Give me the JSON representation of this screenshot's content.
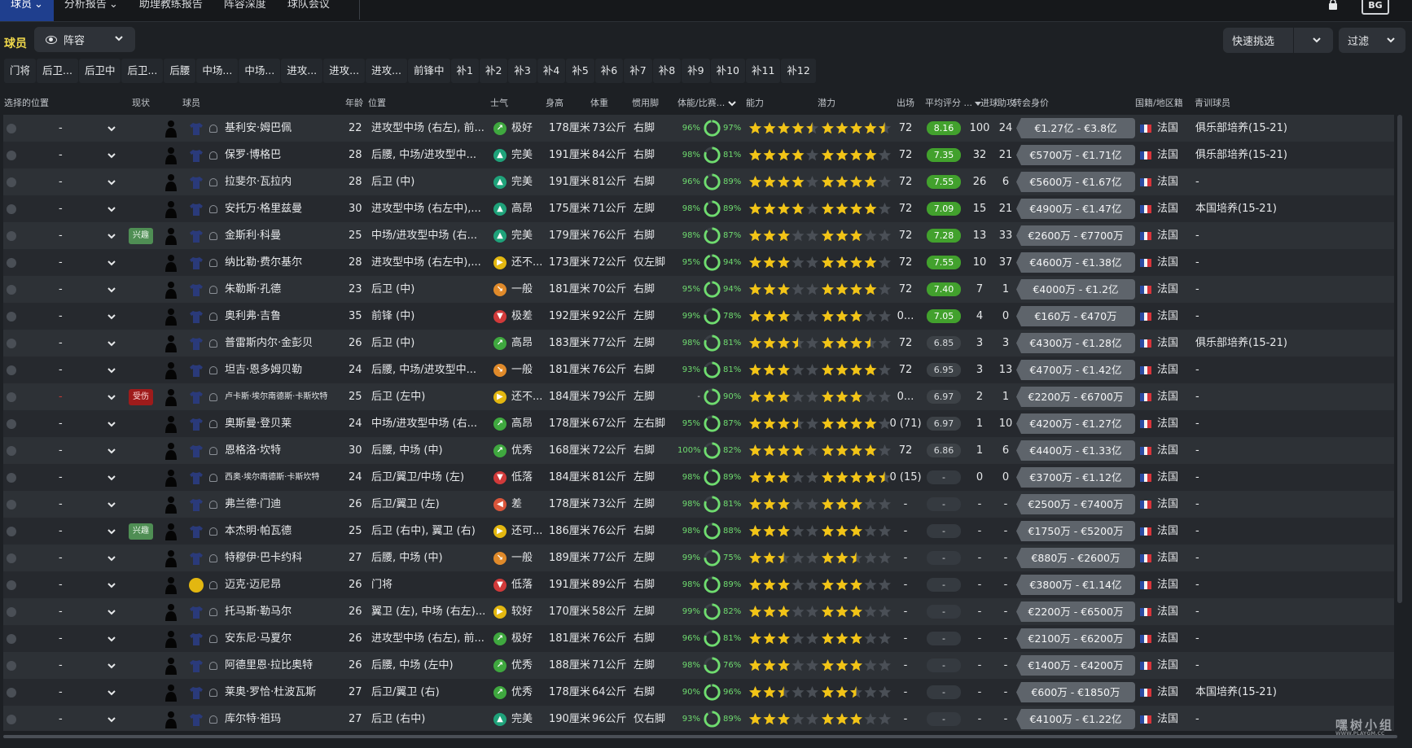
{
  "nav": {
    "items": [
      {
        "label": "球员",
        "active": true
      },
      {
        "label": "分析报告"
      },
      {
        "label": "助理教练报告"
      },
      {
        "label": "阵容深度"
      },
      {
        "label": "球队会议"
      }
    ],
    "logo_text": "BG"
  },
  "header": {
    "section_title": "球员",
    "view_label": "阵容",
    "quick_pick_label": "快速挑选",
    "filter_label": "过滤"
  },
  "tabs": [
    "门将",
    "后卫...",
    "后卫中",
    "后卫...",
    "后腰",
    "中场...",
    "中场...",
    "进攻...",
    "进攻...",
    "进攻...",
    "前锋中",
    "补1",
    "补2",
    "补3",
    "补4",
    "补5",
    "补6",
    "补7",
    "补8",
    "补9",
    "补10",
    "补11",
    "补12"
  ],
  "columns": {
    "select_pos": "选择的位置",
    "status": "现状",
    "player": "球员",
    "age": "年龄",
    "position": "位置",
    "morale": "士气",
    "height": "身高",
    "weight": "体重",
    "foot": "惯用脚",
    "condition": "体能/比赛...",
    "ability": "能力",
    "potential": "潜力",
    "apps": "出场",
    "avg_rating": "平均评分 ...",
    "goals": "进球",
    "assists": "助攻",
    "value": "转会身价",
    "nation": "国籍/地区籍",
    "youth": "青训球员"
  },
  "players": [
    {
      "name": "基利安·姆巴佩",
      "age": "22",
      "pos": "进攻型中场 (右左), 前...",
      "morale": "极好",
      "mc": "#3fa83f",
      "mi": "↗",
      "height": "178厘米",
      "weight": "73公斤",
      "foot": "右脚",
      "cond": "96%",
      "sharp": "97%",
      "ab": 4.5,
      "pot": 4.5,
      "apps": "72",
      "rating": "8.16",
      "rt": "green",
      "goals": "100",
      "assists": "24",
      "value": "€1.27亿 - €3.8亿",
      "nation": "法国",
      "youth": "俱乐部培养(15-21)"
    },
    {
      "name": "保罗·博格巴",
      "age": "28",
      "pos": "后腰, 中场/进攻型中...",
      "morale": "完美",
      "mc": "#1fa27a",
      "mi": "▲",
      "height": "191厘米",
      "weight": "84公斤",
      "foot": "右脚",
      "cond": "98%",
      "sharp": "81%",
      "ab": 4,
      "pot": 4,
      "apps": "72",
      "rating": "7.35",
      "rt": "green",
      "goals": "32",
      "assists": "21",
      "value": "€5700万 - €1.71亿",
      "nation": "法国",
      "youth": "俱乐部培养(15-21)"
    },
    {
      "name": "拉斐尔·瓦拉内",
      "age": "28",
      "pos": "后卫 (中)",
      "morale": "完美",
      "mc": "#1fa27a",
      "mi": "▲",
      "height": "191厘米",
      "weight": "81公斤",
      "foot": "右脚",
      "cond": "96%",
      "sharp": "89%",
      "ab": 4,
      "pot": 4,
      "apps": "72",
      "rating": "7.55",
      "rt": "green",
      "goals": "26",
      "assists": "6",
      "value": "€5600万 - €1.67亿",
      "nation": "法国",
      "youth": "-"
    },
    {
      "name": "安托万·格里兹曼",
      "age": "30",
      "pos": "进攻型中场 (右左中),...",
      "morale": "高昂",
      "mc": "#1fa27a",
      "mi": "▲",
      "height": "175厘米",
      "weight": "71公斤",
      "foot": "左脚",
      "cond": "98%",
      "sharp": "89%",
      "ab": 4,
      "pot": 4,
      "apps": "72",
      "rating": "7.09",
      "rt": "green",
      "goals": "15",
      "assists": "21",
      "value": "€4900万 - €1.47亿",
      "nation": "法国",
      "youth": "本国培养(15-21)"
    },
    {
      "name": "金斯利·科曼",
      "status": "兴趣",
      "st": "interest",
      "age": "25",
      "pos": "中场/进攻型中场 (右...",
      "morale": "完美",
      "mc": "#1fa27a",
      "mi": "▲",
      "height": "179厘米",
      "weight": "76公斤",
      "foot": "右脚",
      "cond": "98%",
      "sharp": "87%",
      "ab": 3,
      "pot": 3,
      "apps": "72",
      "rating": "7.28",
      "rt": "green",
      "goals": "13",
      "assists": "33",
      "value": "€2600万 - €7700万",
      "nation": "法国",
      "youth": "-"
    },
    {
      "name": "纳比勒·费尔基尔",
      "age": "28",
      "pos": "进攻型中场 (右左中),...",
      "morale": "还不...",
      "mc": "#e3b710",
      "mi": "▶",
      "height": "173厘米",
      "weight": "72公斤",
      "foot": "仅左脚",
      "cond": "95%",
      "sharp": "94%",
      "ab": 3,
      "pot": 4,
      "apps": "72",
      "rating": "7.55",
      "rt": "green",
      "goals": "10",
      "assists": "37",
      "value": "€4600万 - €1.38亿",
      "nation": "法国",
      "youth": "-"
    },
    {
      "name": "朱勒斯·孔德",
      "age": "23",
      "pos": "后卫 (中)",
      "morale": "一般",
      "mc": "#e08a2a",
      "mi": "↘",
      "height": "181厘米",
      "weight": "70公斤",
      "foot": "右脚",
      "cond": "95%",
      "sharp": "94%",
      "ab": 3,
      "pot": 4,
      "apps": "72",
      "rating": "7.40",
      "rt": "green",
      "goals": "7",
      "assists": "1",
      "value": "€4000万 - €1.2亿",
      "nation": "法国",
      "youth": "-"
    },
    {
      "name": "奥利弗·吉鲁",
      "age": "35",
      "pos": "前锋 (中)",
      "morale": "极差",
      "mc": "#d13a3a",
      "mi": "▼",
      "height": "192厘米",
      "weight": "92公斤",
      "foot": "左脚",
      "cond": "99%",
      "sharp": "78%",
      "ab": 3,
      "pot": 3,
      "apps": "0...",
      "rating": "7.05",
      "rt": "green",
      "goals": "4",
      "assists": "0",
      "value": "€160万 - €470万",
      "nation": "法国",
      "youth": "-"
    },
    {
      "name": "普雷斯内尔·金彭贝",
      "age": "26",
      "pos": "后卫 (中)",
      "morale": "高昂",
      "mc": "#3fa83f",
      "mi": "↗",
      "height": "183厘米",
      "weight": "77公斤",
      "foot": "左脚",
      "cond": "98%",
      "sharp": "81%",
      "ab": 3.5,
      "pot": 3.5,
      "apps": "72",
      "rating": "6.85",
      "rt": "gray",
      "goals": "3",
      "assists": "3",
      "value": "€4300万 - €1.28亿",
      "nation": "法国",
      "youth": "俱乐部培养(15-21)"
    },
    {
      "name": "坦吉·恩多姆贝勒",
      "age": "24",
      "pos": "后腰, 中场/进攻型中...",
      "morale": "一般",
      "mc": "#e08a2a",
      "mi": "↘",
      "height": "181厘米",
      "weight": "76公斤",
      "foot": "右脚",
      "cond": "93%",
      "sharp": "81%",
      "ab": 3,
      "pot": 4,
      "apps": "72",
      "rating": "6.95",
      "rt": "gray",
      "goals": "3",
      "assists": "13",
      "value": "€4700万 - €1.42亿",
      "nation": "法国",
      "youth": "-"
    },
    {
      "name": "卢卡斯·埃尔南德斯·卡斯坎特",
      "status": "受伤",
      "st": "injured",
      "sel_red": true,
      "age": "25",
      "pos": "后卫 (左中)",
      "morale": "还不...",
      "mc": "#e3b710",
      "mi": "▶",
      "height": "184厘米",
      "weight": "79公斤",
      "foot": "左脚",
      "cond": "-",
      "sharp": "90%",
      "ab": 3,
      "pot": 3,
      "apps": "0...",
      "rating": "6.97",
      "rt": "gray",
      "goals": "2",
      "assists": "1",
      "value": "€2200万 - €6700万",
      "nation": "法国",
      "youth": "-"
    },
    {
      "name": "奥斯曼·登贝莱",
      "age": "24",
      "pos": "中场/进攻型中场 (右...",
      "morale": "高昂",
      "mc": "#3fa83f",
      "mi": "↗",
      "height": "178厘米",
      "weight": "67公斤",
      "foot": "左右脚",
      "cond": "95%",
      "sharp": "87%",
      "ab": 3.5,
      "pot": 4,
      "apps": "0 (71)",
      "rating": "6.97",
      "rt": "gray",
      "goals": "1",
      "assists": "10",
      "value": "€4200万 - €1.27亿",
      "nation": "法国",
      "youth": "-"
    },
    {
      "name": "恩格洛·坎特",
      "age": "30",
      "pos": "后腰, 中场 (中)",
      "morale": "优秀",
      "mc": "#3fa83f",
      "mi": "↗",
      "height": "168厘米",
      "weight": "72公斤",
      "foot": "右脚",
      "cond": "100%",
      "sharp": "82%",
      "ab": 4,
      "pot": 4,
      "apps": "72",
      "rating": "6.86",
      "rt": "gray",
      "goals": "1",
      "assists": "6",
      "value": "€4400万 - €1.33亿",
      "nation": "法国",
      "youth": "-"
    },
    {
      "name": "西奥·埃尔南德斯·卡斯坎特",
      "age": "24",
      "pos": "后卫/翼卫/中场 (左)",
      "morale": "低落",
      "mc": "#d13a3a",
      "mi": "▼",
      "height": "184厘米",
      "weight": "81公斤",
      "foot": "左脚",
      "cond": "98%",
      "sharp": "89%",
      "ab": 3,
      "pot": 4.5,
      "apps": "0 (15)",
      "rating": "-",
      "rt": "dash",
      "goals": "0",
      "assists": "0",
      "value": "€3700万 - €1.12亿",
      "nation": "法国",
      "youth": "-"
    },
    {
      "name": "弗兰德·门迪",
      "age": "26",
      "pos": "后卫/翼卫 (左)",
      "morale": "差",
      "mc": "#d9553a",
      "mi": "◀",
      "height": "178厘米",
      "weight": "73公斤",
      "foot": "左脚",
      "cond": "98%",
      "sharp": "81%",
      "ab": 3,
      "pot": 3,
      "apps": "-",
      "rating": "-",
      "rt": "dash",
      "goals": "-",
      "assists": "-",
      "value": "€2500万 - €7400万",
      "nation": "法国",
      "youth": "-"
    },
    {
      "name": "本杰明·帕瓦德",
      "status": "兴趣",
      "st": "interest",
      "age": "25",
      "pos": "后卫 (右中), 翼卫 (右)",
      "morale": "还可...",
      "mc": "#e3b710",
      "mi": "▶",
      "height": "186厘米",
      "weight": "76公斤",
      "foot": "右脚",
      "cond": "98%",
      "sharp": "88%",
      "ab": 3,
      "pot": 3,
      "apps": "-",
      "rating": "-",
      "rt": "dash",
      "goals": "-",
      "assists": "-",
      "value": "€1750万 - €5200万",
      "nation": "法国",
      "youth": "-"
    },
    {
      "name": "特穆伊·巴卡约科",
      "age": "27",
      "pos": "后腰, 中场 (中)",
      "morale": "一般",
      "mc": "#e08a2a",
      "mi": "↘",
      "height": "189厘米",
      "weight": "77公斤",
      "foot": "左脚",
      "cond": "99%",
      "sharp": "75%",
      "ab": 2.5,
      "pot": 2.5,
      "apps": "-",
      "rating": "-",
      "rt": "dash",
      "goals": "-",
      "assists": "-",
      "value": "€880万 - €2600万",
      "nation": "法国",
      "youth": "-"
    },
    {
      "name": "迈克·迈尼昂",
      "gk": true,
      "age": "26",
      "pos": "门将",
      "morale": "低落",
      "mc": "#d13a3a",
      "mi": "▼",
      "height": "191厘米",
      "weight": "89公斤",
      "foot": "右脚",
      "cond": "98%",
      "sharp": "89%",
      "ab": 3,
      "pot": 3,
      "apps": "-",
      "rating": "-",
      "rt": "dash",
      "goals": "-",
      "assists": "-",
      "value": "€3800万 - €1.14亿",
      "nation": "法国",
      "youth": "-"
    },
    {
      "name": "托马斯·勒马尔",
      "age": "26",
      "pos": "翼卫 (左), 中场 (右左)...",
      "morale": "较好",
      "mc": "#e3b710",
      "mi": "▶",
      "height": "170厘米",
      "weight": "58公斤",
      "foot": "左脚",
      "cond": "99%",
      "sharp": "82%",
      "ab": 3,
      "pot": 3,
      "apps": "-",
      "rating": "-",
      "rt": "dash",
      "goals": "-",
      "assists": "-",
      "value": "€2200万 - €6500万",
      "nation": "法国",
      "youth": "-"
    },
    {
      "name": "安东尼·马夏尔",
      "age": "26",
      "pos": "进攻型中场 (右左), 前...",
      "morale": "极好",
      "mc": "#3fa83f",
      "mi": "↗",
      "height": "181厘米",
      "weight": "76公斤",
      "foot": "右脚",
      "cond": "96%",
      "sharp": "81%",
      "ab": 3,
      "pot": 3,
      "apps": "-",
      "rating": "-",
      "rt": "dash",
      "goals": "-",
      "assists": "-",
      "value": "€2100万 - €6200万",
      "nation": "法国",
      "youth": "-"
    },
    {
      "name": "阿德里恩·拉比奥特",
      "age": "26",
      "pos": "后腰, 中场 (左中)",
      "morale": "优秀",
      "mc": "#3fa83f",
      "mi": "↗",
      "height": "188厘米",
      "weight": "71公斤",
      "foot": "左脚",
      "cond": "98%",
      "sharp": "76%",
      "ab": 3,
      "pot": 3,
      "apps": "-",
      "rating": "-",
      "rt": "dash",
      "goals": "-",
      "assists": "-",
      "value": "€1400万 - €4200万",
      "nation": "法国",
      "youth": "-"
    },
    {
      "name": "莱奥·罗恰·杜波瓦斯",
      "age": "27",
      "pos": "后卫/翼卫 (右)",
      "morale": "优秀",
      "mc": "#3fa83f",
      "mi": "↗",
      "height": "178厘米",
      "weight": "64公斤",
      "foot": "右脚",
      "cond": "90%",
      "sharp": "96%",
      "ab": 2.5,
      "pot": 2.5,
      "apps": "-",
      "rating": "-",
      "rt": "dash",
      "goals": "-",
      "assists": "-",
      "value": "€600万 - €1850万",
      "nation": "法国",
      "youth": "本国培养(15-21)"
    },
    {
      "name": "库尔特·祖玛",
      "age": "27",
      "pos": "后卫 (右中)",
      "morale": "完美",
      "mc": "#1fa27a",
      "mi": "▲",
      "height": "190厘米",
      "weight": "96公斤",
      "foot": "仅右脚",
      "cond": "93%",
      "sharp": "89%",
      "ab": 3,
      "pot": 3,
      "apps": "-",
      "rating": "-",
      "rt": "dash",
      "goals": "-",
      "assists": "-",
      "value": "€4100万 - €1.22亿",
      "nation": "法国",
      "youth": "-"
    }
  ],
  "colors": {
    "accent": "#1f3f8e",
    "star": "#f2c417",
    "rating_good": "#42a12d",
    "condition": "#6fdc6f",
    "section_title": "#f0d84b"
  },
  "watermark": {
    "text": "嘿树小组",
    "sub": "WWW.PLAYGM.CC"
  }
}
